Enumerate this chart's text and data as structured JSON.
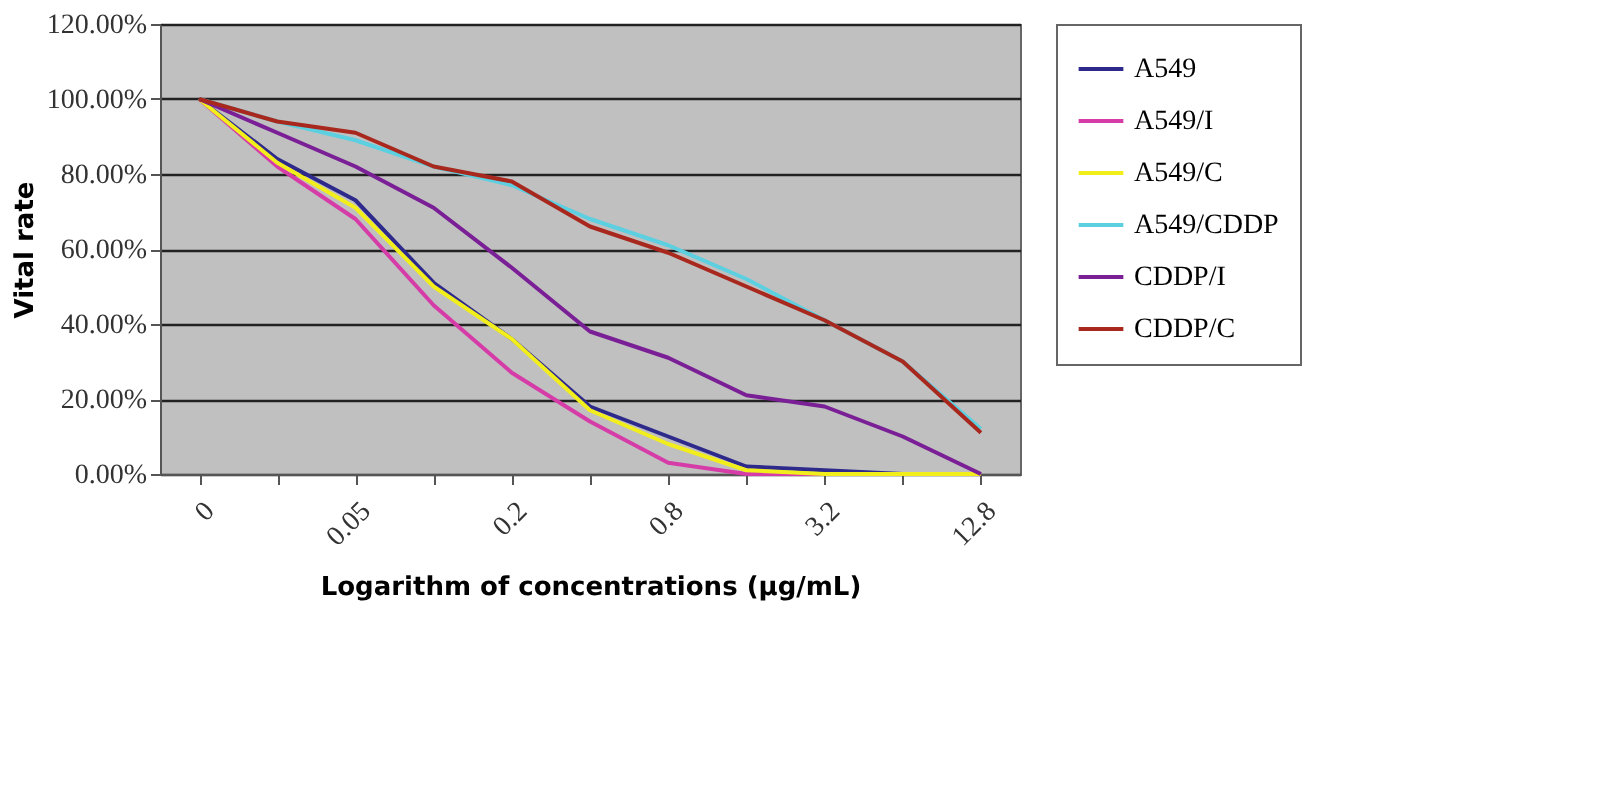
{
  "chart_data": {
    "type": "line",
    "xlabel": "Logarithm of concentrations (μg/mL)",
    "ylabel": "Vital rate",
    "categories": [
      "0",
      null,
      "0.05",
      null,
      "0.2",
      null,
      "0.8",
      null,
      "3.2",
      null,
      "12.8"
    ],
    "ylim": [
      0,
      120
    ],
    "yticks": [
      {
        "value": 0,
        "label": "0.00%"
      },
      {
        "value": 20,
        "label": "20.00%"
      },
      {
        "value": 40,
        "label": "40.00%"
      },
      {
        "value": 60,
        "label": "60.00%"
      },
      {
        "value": 80,
        "label": "80.00%"
      },
      {
        "value": 100,
        "label": "100.00%"
      },
      {
        "value": 120,
        "label": "120.00%"
      }
    ],
    "grid": "y",
    "legend": "right",
    "marker": "none",
    "line_style": "solid",
    "series": [
      {
        "name": "A549",
        "color": "#2e2a8c",
        "values": [
          100,
          84,
          73,
          51,
          36,
          18,
          10,
          2,
          1,
          0,
          0
        ]
      },
      {
        "name": "A549/I",
        "color": "#d63ca8",
        "values": [
          100,
          82,
          68,
          45,
          27,
          14,
          3,
          0,
          0,
          0,
          0
        ]
      },
      {
        "name": "A549/C",
        "color": "#f2ee1c",
        "values": [
          100,
          83,
          71,
          50,
          36,
          17,
          8,
          1,
          0,
          0,
          0
        ]
      },
      {
        "name": "A549/CDDP",
        "color": "#5ccfe0",
        "values": [
          100,
          94,
          89,
          82,
          77,
          68,
          61,
          52,
          41,
          30,
          12
        ]
      },
      {
        "name": "CDDP/I",
        "color": "#7a1f96",
        "values": [
          100,
          91,
          82,
          71,
          55,
          38,
          31,
          21,
          18,
          10,
          0
        ]
      },
      {
        "name": "CDDP/C",
        "color": "#a8281e",
        "values": [
          100,
          94,
          91,
          82,
          78,
          66,
          59,
          50,
          41,
          30,
          11
        ]
      }
    ]
  }
}
